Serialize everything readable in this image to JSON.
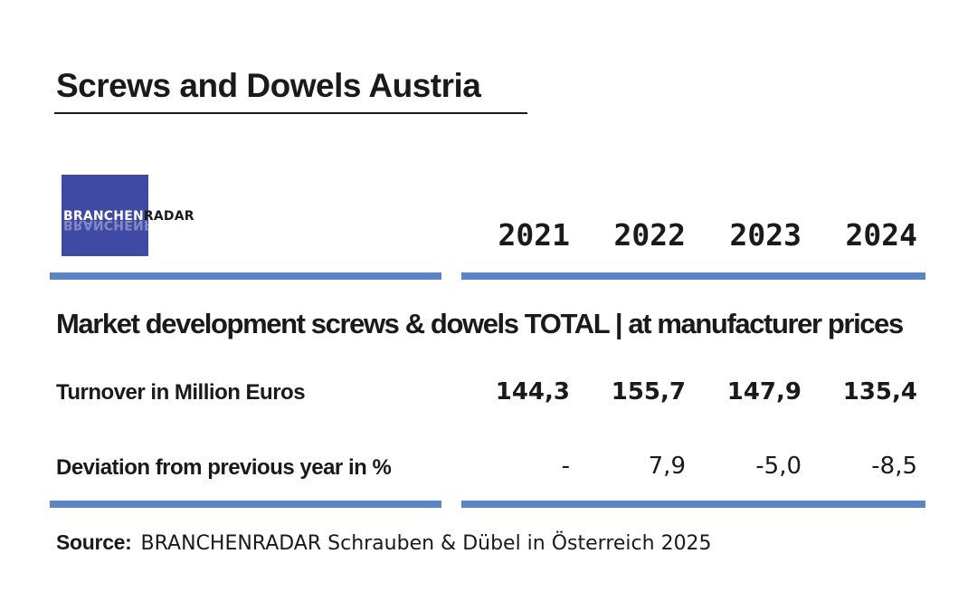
{
  "chart_data": {
    "type": "table",
    "title": "Screws and Dowels Austria",
    "subtitle": "Market development screws & dowels TOTAL | at manufacturer prices",
    "columns": [
      "2021",
      "2022",
      "2023",
      "2024"
    ],
    "rows": [
      {
        "label": "Turnover in Million Euros",
        "values": [
          "144,3",
          "155,7",
          "147,9",
          "135,4"
        ]
      },
      {
        "label": "Deviation from previous year in %",
        "values": [
          "-",
          "7,9",
          "-5,0",
          "-8,5"
        ]
      }
    ],
    "source_label": "Source:",
    "source_text": "BRANCHENRADAR Schrauben & Dübel in Österreich 2025"
  },
  "logo": {
    "part1": "BRANCHEN",
    "part2": "RADAR"
  },
  "colors": {
    "rule": "#5a84c8",
    "logo_bg": "#3f4aa5",
    "text": "#1a1a1a"
  }
}
